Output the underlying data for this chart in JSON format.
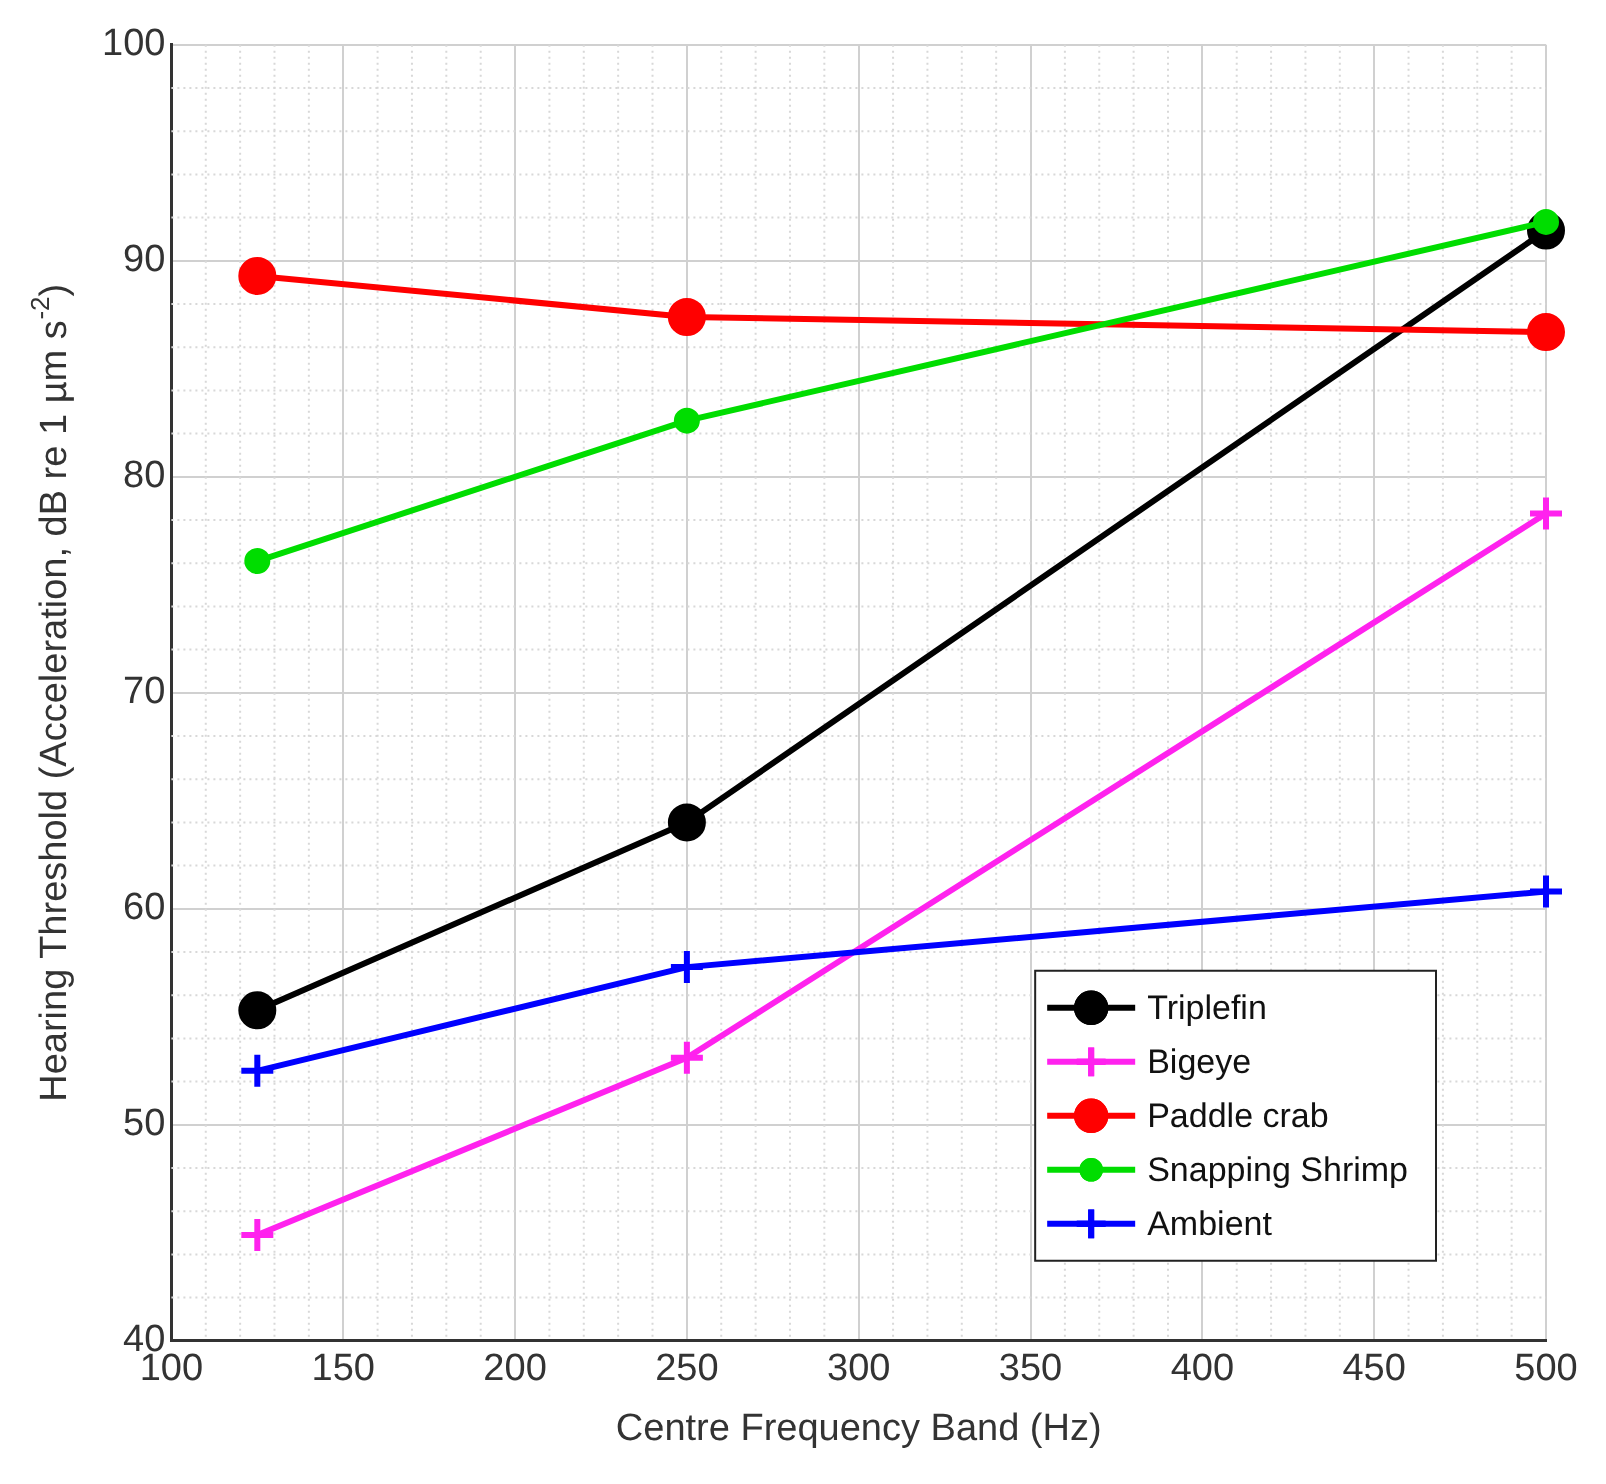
{
  "chart_data": {
    "type": "line",
    "xlabel": "Centre Frequency Band (Hz)",
    "ylabel": "Hearing Threshold (Acceleration, dB re 1 µm s$^{-2}$)",
    "x": [
      125,
      250,
      500
    ],
    "series": [
      {
        "name": "Triplefin",
        "color": "#000000",
        "marker": "circle",
        "values": [
          55.3,
          64.0,
          91.4
        ]
      },
      {
        "name": "Bigeye",
        "color": "#ff22ee",
        "marker": "cross",
        "values": [
          44.9,
          53.1,
          78.3
        ]
      },
      {
        "name": "Paddle crab",
        "color": "#ff0000",
        "marker": "circle",
        "values": [
          89.3,
          87.4,
          86.7
        ]
      },
      {
        "name": "Snapping Shrimp",
        "color": "#00dd00",
        "marker": "circle",
        "values": [
          76.1,
          82.6,
          91.8
        ]
      },
      {
        "name": "Ambient",
        "color": "#0000ff",
        "marker": "cross",
        "values": [
          52.5,
          57.3,
          60.8
        ]
      }
    ],
    "xlim": [
      100,
      500
    ],
    "xticks": [
      100,
      150,
      200,
      250,
      300,
      350,
      400,
      450,
      500
    ],
    "ylim": [
      40,
      100
    ],
    "yticks": [
      40,
      50,
      60,
      70,
      80,
      90,
      100
    ],
    "grid": true,
    "legend": "bottom right"
  }
}
